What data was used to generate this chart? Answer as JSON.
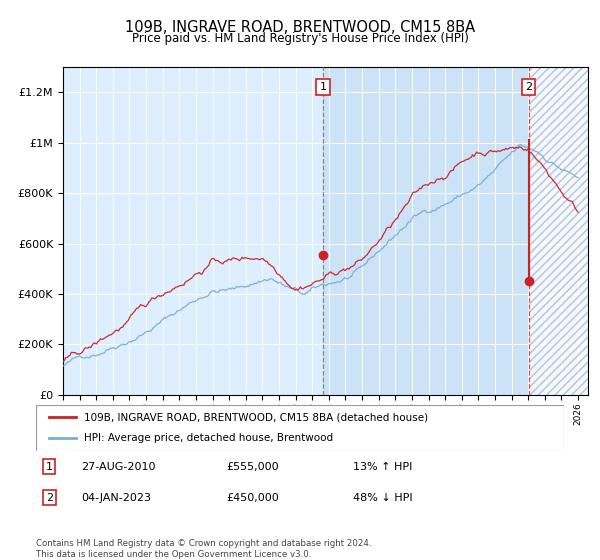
{
  "title": "109B, INGRAVE ROAD, BRENTWOOD, CM15 8BA",
  "subtitle": "Price paid vs. HM Land Registry's House Price Index (HPI)",
  "legend_line1": "109B, INGRAVE ROAD, BRENTWOOD, CM15 8BA (detached house)",
  "legend_line2": "HPI: Average price, detached house, Brentwood",
  "annotation1_date": "27-AUG-2010",
  "annotation1_price": 555000,
  "annotation1_hpi": "13% ↑ HPI",
  "annotation2_date": "04-JAN-2023",
  "annotation2_price": 450000,
  "annotation2_hpi": "48% ↓ HPI",
  "footer": "Contains HM Land Registry data © Crown copyright and database right 2024.\nThis data is licensed under the Open Government Licence v3.0.",
  "hpi_color": "#7aadd4",
  "price_color": "#cc2222",
  "background_color": "#ddeeff",
  "ylim_max": 1300000,
  "year_start": 1995,
  "year_end": 2026,
  "purchase1_year": 2010.65,
  "purchase2_year": 2023.02,
  "purchase1_price": 555000,
  "purchase2_price": 450000,
  "purchase2_peak": 1010000
}
